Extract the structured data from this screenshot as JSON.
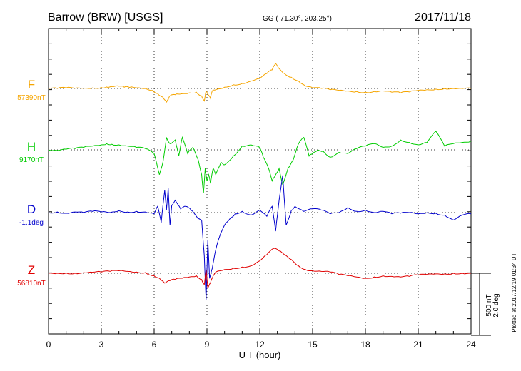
{
  "header": {
    "station": "Barrow (BRW)  [USGS]",
    "coords": "GG ( 71.30°, 203.25°)",
    "date": "2017/11/18"
  },
  "side_note": "Plotted at 2017/12/19 01:34  UT",
  "scale_bar": {
    "line1": "500 nT",
    "line2": "2.0 deg"
  },
  "chart_data": {
    "type": "line",
    "xlabel": "U T (hour)",
    "xlim": [
      0,
      24
    ],
    "xticks": [
      0,
      3,
      6,
      9,
      12,
      15,
      18,
      21,
      24
    ],
    "scale": "500 nT / 2.0 deg per scale bar",
    "series": [
      {
        "name": "F",
        "baseline_label": "57390nT",
        "color": "#f5a500",
        "unit": "nT",
        "x": [
          0,
          0.5,
          1,
          1.5,
          2,
          2.5,
          3,
          3.3,
          3.6,
          4,
          4.3,
          4.6,
          5,
          5.5,
          5.9,
          6.2,
          6.5,
          6.7,
          6.8,
          6.9,
          7.2,
          7.5,
          8,
          8.4,
          8.7,
          8.85,
          8.95,
          9.05,
          9.2,
          9.3,
          9.5,
          10,
          10.5,
          11,
          11.5,
          12,
          12.4,
          12.7,
          12.9,
          13.1,
          13.4,
          13.8,
          14.2,
          14.6,
          15,
          15.5,
          16,
          16.5,
          17,
          17.5,
          18,
          18.5,
          19,
          19.5,
          20,
          20.5,
          21,
          21.5,
          22,
          22.5,
          23,
          23.5,
          24
        ],
        "values": [
          0,
          0,
          5,
          2,
          3,
          5,
          8,
          12,
          15,
          18,
          10,
          8,
          5,
          0,
          -15,
          -40,
          -70,
          -110,
          -90,
          -60,
          -50,
          -45,
          -35,
          -30,
          -60,
          -100,
          -20,
          -50,
          -80,
          -20,
          -10,
          10,
          30,
          40,
          60,
          80,
          120,
          150,
          200,
          160,
          120,
          90,
          60,
          20,
          5,
          0,
          -10,
          -15,
          -20,
          -25,
          -30,
          -25,
          -20,
          -30,
          -35,
          -28,
          -15,
          -10,
          -5,
          0,
          0,
          0,
          0
        ]
      },
      {
        "name": "H",
        "baseline_label": "9170nT",
        "color": "#00cc00",
        "unit": "nT",
        "x": [
          0,
          0.5,
          1,
          1.5,
          2,
          2.5,
          3,
          3.3,
          3.6,
          4,
          4.5,
          5,
          5.5,
          6,
          6.3,
          6.5,
          6.7,
          6.9,
          7.2,
          7.4,
          7.6,
          7.9,
          8.2,
          8.5,
          8.7,
          8.8,
          8.9,
          9,
          9.1,
          9.2,
          9.35,
          9.5,
          9.8,
          10,
          10.5,
          11,
          11.5,
          12,
          12.2,
          12.5,
          12.7,
          12.9,
          13.1,
          13.3,
          13.6,
          13.9,
          14.2,
          14.5,
          14.8,
          15,
          15.3,
          15.6,
          16,
          16.5,
          17,
          17.5,
          18,
          18.5,
          19,
          19.5,
          20,
          20.5,
          21,
          21.5,
          22,
          22.5,
          23,
          23.5,
          24
        ],
        "values": [
          0,
          -5,
          5,
          10,
          20,
          30,
          40,
          50,
          45,
          40,
          30,
          20,
          10,
          -30,
          -200,
          -100,
          100,
          50,
          80,
          -50,
          100,
          -30,
          20,
          -80,
          -200,
          -350,
          -150,
          -250,
          -200,
          -270,
          -150,
          -200,
          -100,
          -120,
          -50,
          30,
          40,
          20,
          -60,
          -150,
          -250,
          -200,
          -150,
          -280,
          -150,
          -80,
          50,
          100,
          -50,
          -30,
          0,
          -10,
          -60,
          -20,
          -30,
          10,
          30,
          50,
          20,
          30,
          80,
          60,
          40,
          60,
          150,
          30,
          50,
          60,
          70
        ]
      },
      {
        "name": "D",
        "baseline_label": "-1.1deg",
        "color": "#0000cc",
        "unit": "deg",
        "x": [
          0,
          0.5,
          1,
          1.5,
          2,
          2.5,
          3,
          3.5,
          4,
          4.5,
          5,
          5.5,
          6,
          6.2,
          6.4,
          6.6,
          6.7,
          6.8,
          6.9,
          7,
          7.2,
          7.5,
          7.8,
          8.1,
          8.5,
          8.7,
          8.85,
          8.95,
          9.05,
          9.15,
          9.3,
          9.5,
          9.7,
          10,
          10.3,
          10.6,
          11,
          11.5,
          12,
          12.4,
          12.7,
          12.9,
          13.1,
          13.3,
          13.5,
          13.8,
          14,
          14.5,
          15,
          15.5,
          16,
          16.5,
          17,
          17.5,
          18,
          18.5,
          19,
          19.5,
          20,
          20.5,
          21,
          21.5,
          22,
          22.5,
          23,
          23.5,
          24
        ],
        "values": [
          0,
          5,
          -5,
          5,
          0,
          10,
          5,
          0,
          15,
          5,
          10,
          5,
          -10,
          50,
          -80,
          180,
          20,
          200,
          -100,
          60,
          100,
          30,
          50,
          20,
          -50,
          -60,
          -350,
          -700,
          -220,
          -530,
          -450,
          -300,
          -200,
          -100,
          -50,
          -10,
          10,
          -20,
          20,
          -30,
          50,
          -150,
          100,
          300,
          -100,
          20,
          50,
          10,
          30,
          20,
          -10,
          0,
          40,
          10,
          20,
          0,
          10,
          -10,
          -5,
          0,
          -10,
          0,
          -5,
          -20,
          -60,
          -20,
          -10
        ]
      },
      {
        "name": "Z",
        "baseline_label": "56810nT",
        "color": "#e00000",
        "unit": "nT",
        "x": [
          0,
          0.5,
          1,
          1.5,
          2,
          2.5,
          3,
          3.5,
          4,
          4.5,
          5,
          5.5,
          6,
          6.3,
          6.6,
          6.9,
          7.2,
          7.6,
          8,
          8.4,
          8.7,
          8.85,
          8.95,
          9.05,
          9.2,
          9.3,
          9.5,
          10,
          10.5,
          11,
          11.5,
          12,
          12.4,
          12.8,
          13.1,
          13.4,
          13.8,
          14.2,
          14.6,
          15,
          15.5,
          16,
          16.5,
          17,
          17.5,
          18,
          18.5,
          19,
          19.5,
          20,
          20.5,
          21,
          21.5,
          22,
          22.5,
          23,
          23.5,
          24
        ],
        "values": [
          0,
          0,
          2,
          0,
          5,
          8,
          10,
          15,
          20,
          15,
          10,
          5,
          -20,
          -40,
          -80,
          -60,
          -50,
          -40,
          -30,
          -20,
          -50,
          -90,
          30,
          -120,
          -80,
          -40,
          10,
          30,
          40,
          50,
          60,
          100,
          150,
          200,
          180,
          150,
          110,
          60,
          30,
          20,
          15,
          10,
          -10,
          -20,
          -30,
          -40,
          -30,
          -20,
          -25,
          -30,
          -25,
          -15,
          -10,
          -5,
          -5,
          0,
          0,
          0
        ]
      }
    ]
  }
}
